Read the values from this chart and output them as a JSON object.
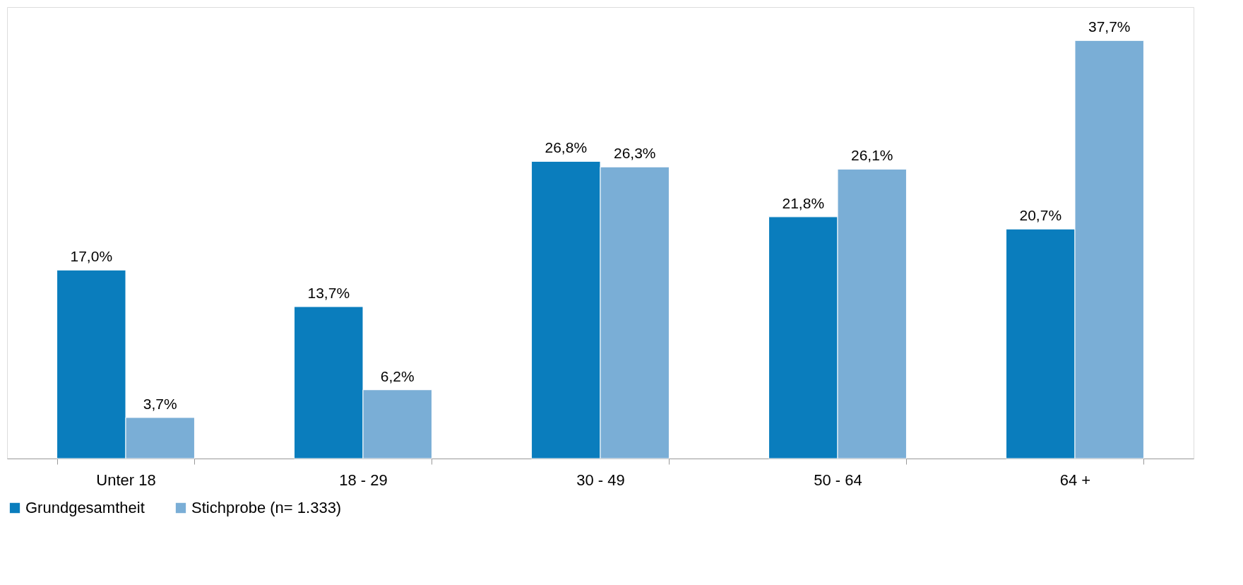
{
  "chart_data": {
    "type": "bar",
    "categories": [
      "Unter 18",
      "18 - 29",
      "30 - 49",
      "50 - 64",
      "64 +"
    ],
    "series": [
      {
        "name": "Grundgesamtheit",
        "color": "#0a7dbd",
        "values": [
          17.0,
          13.7,
          26.8,
          21.8,
          20.7
        ],
        "value_labels": [
          "17,0%",
          "13,7%",
          "26,8%",
          "21,8%",
          "20,7%"
        ]
      },
      {
        "name": "Stichprobe (n= 1.333)",
        "color": "#7aaed6",
        "values": [
          3.7,
          6.2,
          26.3,
          26.1,
          37.7
        ],
        "value_labels": [
          "3,7%",
          "6,2%",
          "26,3%",
          "26,1%",
          "37,7%"
        ]
      }
    ],
    "legend": "bottom",
    "grid": false
  }
}
